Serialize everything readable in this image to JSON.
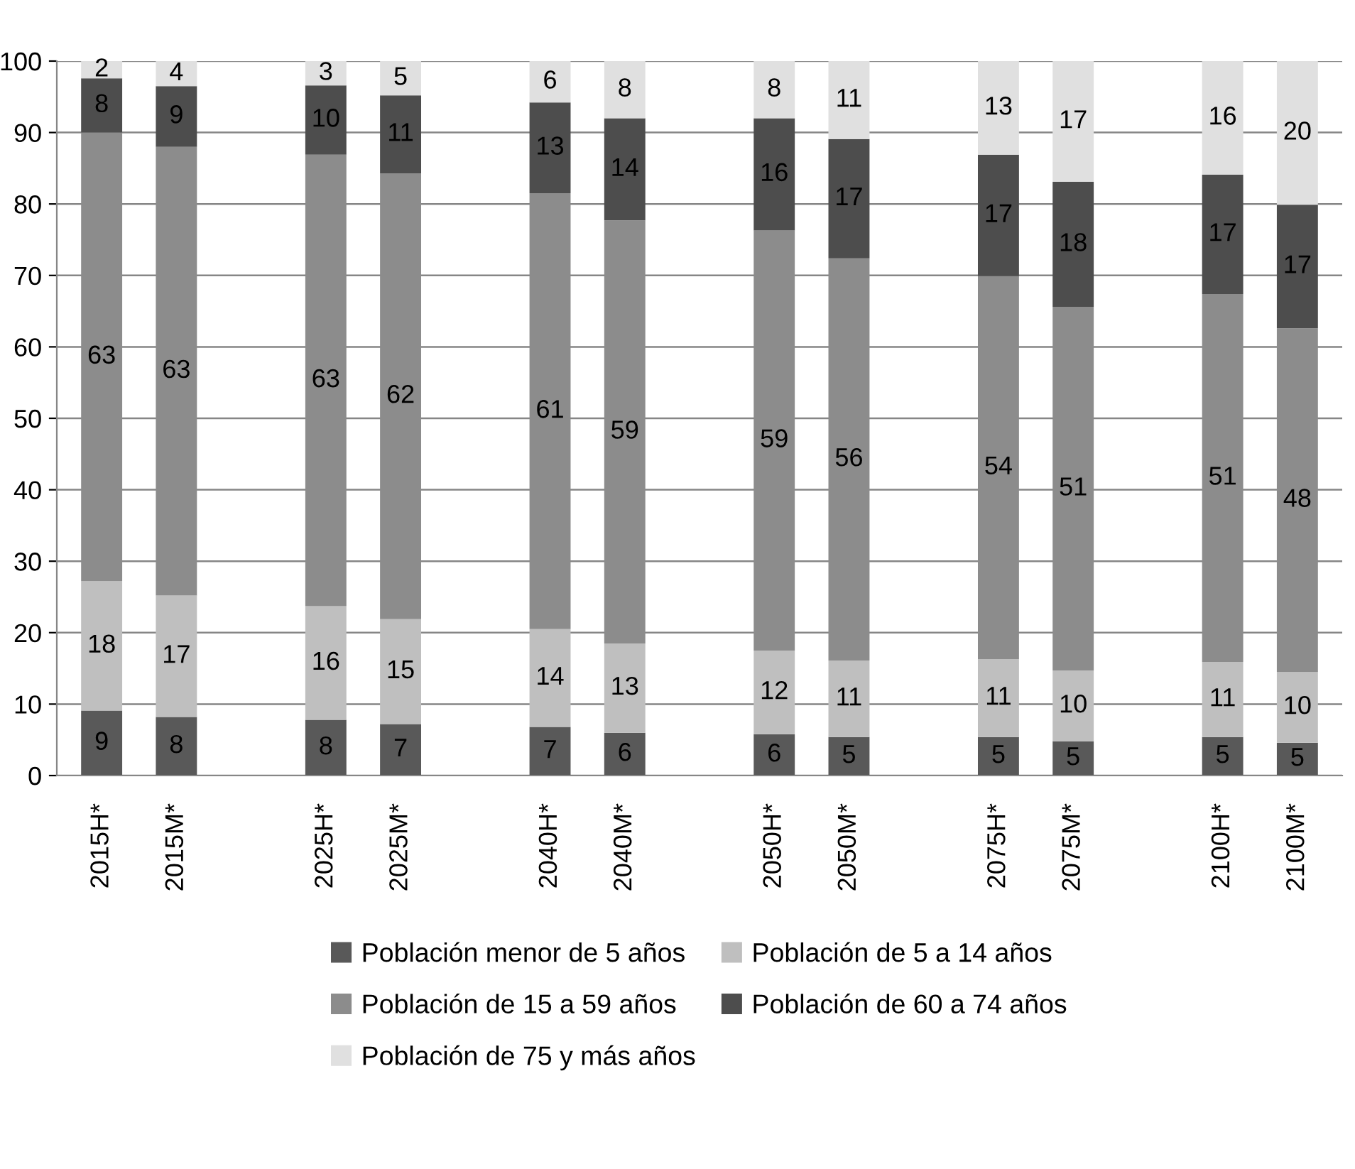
{
  "chart_data": {
    "type": "bar",
    "stacked": true,
    "categories": [
      "2015H*",
      "2015M*",
      null,
      "2025H*",
      "2025M*",
      null,
      "2040H*",
      "2040M*",
      null,
      "2050H*",
      "2050M*",
      null,
      "2075H*",
      "2075M*",
      null,
      "2100H*",
      "2100M*"
    ],
    "series": [
      {
        "name": "Población menor de 5 años",
        "color": "#595959",
        "values": [
          9.1,
          8.2,
          null,
          7.8,
          7.2,
          null,
          6.8,
          6.0,
          null,
          5.8,
          5.4,
          null,
          5.4,
          4.8,
          null,
          5.4,
          4.6
        ],
        "value_labels": [
          "9",
          "8",
          null,
          "8",
          "7",
          null,
          "7",
          "6",
          null,
          "6",
          "5",
          null,
          "5",
          "5",
          null,
          "5",
          "5"
        ]
      },
      {
        "name": "Población de 5 a 14 años",
        "color": "#bfbfbf",
        "values": [
          18.1,
          17.0,
          null,
          15.9,
          14.7,
          null,
          13.7,
          12.5,
          null,
          11.7,
          10.7,
          null,
          10.9,
          9.9,
          null,
          10.5,
          9.9
        ],
        "value_labels": [
          "18",
          "17",
          null,
          "16",
          "15",
          null,
          "14",
          "13",
          null,
          "12",
          "11",
          null,
          "11",
          "10",
          null,
          "11",
          "10"
        ]
      },
      {
        "name": "Población de 15 a 59 años",
        "color": "#8c8c8c",
        "values": [
          62.8,
          62.8,
          null,
          63.2,
          62.4,
          null,
          61.0,
          59.2,
          null,
          58.8,
          56.3,
          null,
          53.6,
          50.9,
          null,
          51.5,
          48.1
        ],
        "value_labels": [
          "63",
          "63",
          null,
          "63",
          "62",
          null,
          "61",
          "59",
          null,
          "59",
          "56",
          null,
          "54",
          "51",
          null,
          "51",
          "48"
        ]
      },
      {
        "name": "Población de 60 a 74 años",
        "color": "#4d4d4d",
        "values": [
          7.6,
          8.5,
          null,
          9.7,
          10.9,
          null,
          12.7,
          14.3,
          null,
          15.7,
          16.7,
          null,
          17.0,
          17.5,
          null,
          16.7,
          17.3
        ],
        "value_labels": [
          "8",
          "9",
          null,
          "10",
          "11",
          null,
          "13",
          "14",
          null,
          "16",
          "17",
          null,
          "17",
          "18",
          null,
          "17",
          "17"
        ]
      },
      {
        "name": "Población de 75 y más años",
        "color": "#e0e0e0",
        "values": [
          2.4,
          3.5,
          null,
          3.4,
          4.8,
          null,
          5.8,
          8.0,
          null,
          8.0,
          10.9,
          null,
          13.1,
          16.9,
          null,
          15.9,
          20.1
        ],
        "value_labels": [
          "2",
          "4",
          null,
          "3",
          "5",
          null,
          "6",
          "8",
          null,
          "8",
          "11",
          null,
          "13",
          "17",
          null,
          "16",
          "20"
        ]
      }
    ],
    "ylim": [
      0,
      100
    ],
    "yticks": [
      0,
      10,
      20,
      30,
      40,
      50,
      60,
      70,
      80,
      90,
      100
    ],
    "grid": "y",
    "legend": "bottom"
  }
}
